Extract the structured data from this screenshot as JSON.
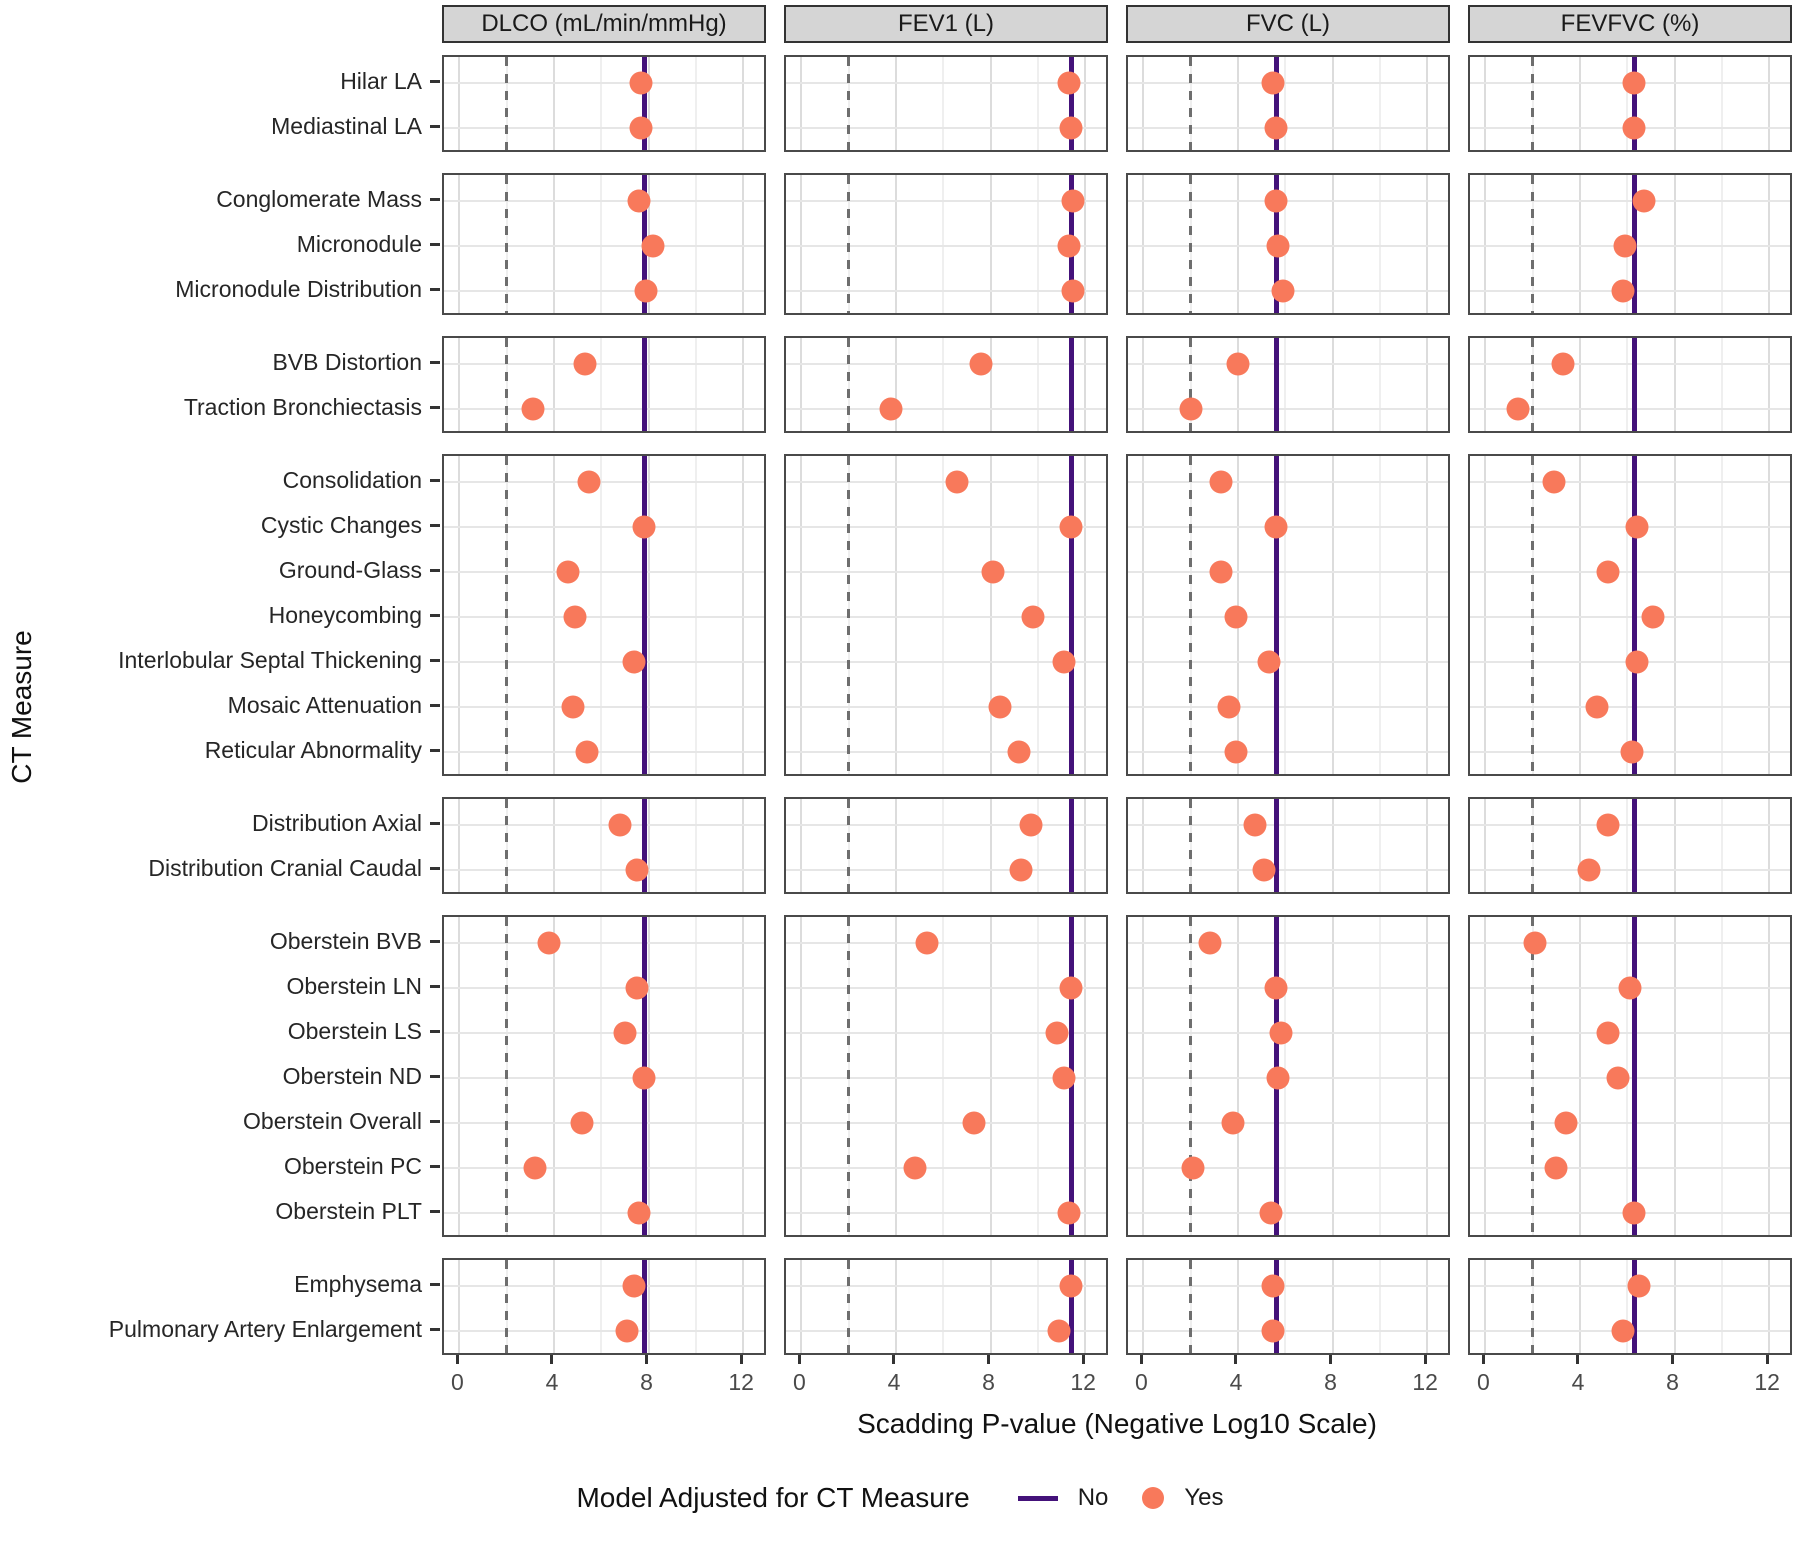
{
  "chart_data": {
    "type": "scatter",
    "subtype": "faceted-dot-plot",
    "facet_columns": [
      "DLCO (mL/min/mmHg)",
      "FEV1 (L)",
      "FVC (L)",
      "FEVFVC (%)"
    ],
    "xlabel": "Scadding P-value (Negative Log10 Scale)",
    "ylabel": "CT Measure",
    "x_ticks": [
      0,
      4,
      8,
      12
    ],
    "xlim": [
      -0.65,
      13.05
    ],
    "grid": "on",
    "dashed_reference_x": 2,
    "no_line_x": [
      7.8,
      11.4,
      5.6,
      6.3
    ],
    "legend": {
      "title": "Model Adjusted for CT Measure",
      "position": "bottom",
      "entries": [
        {
          "label": "No",
          "symbol": "line",
          "color": "#44127a"
        },
        {
          "label": "Yes",
          "symbol": "point",
          "color": "#f8795b"
        }
      ]
    },
    "colors": {
      "point": "#f8795b",
      "no_line": "#44127a",
      "dashed_line": "#6e6e6e",
      "strip_background": "#d5d5d5"
    },
    "row_groups": [
      {
        "rows": [
          {
            "label": "Hilar LA",
            "adjusted": [
              7.7,
              11.3,
              5.5,
              6.3
            ]
          },
          {
            "label": "Mediastinal LA",
            "adjusted": [
              7.7,
              11.4,
              5.6,
              6.3
            ]
          }
        ]
      },
      {
        "rows": [
          {
            "label": "Conglomerate Mass",
            "adjusted": [
              7.6,
              11.5,
              5.6,
              6.7
            ]
          },
          {
            "label": "Micronodule",
            "adjusted": [
              8.2,
              11.3,
              5.7,
              5.9
            ]
          },
          {
            "label": "Micronodule Distribution",
            "adjusted": [
              7.9,
              11.5,
              5.9,
              5.8
            ]
          }
        ]
      },
      {
        "rows": [
          {
            "label": "BVB Distortion",
            "adjusted": [
              5.3,
              7.6,
              4.0,
              3.3
            ]
          },
          {
            "label": "Traction Bronchiectasis",
            "adjusted": [
              3.1,
              3.8,
              2.0,
              1.4
            ]
          }
        ]
      },
      {
        "rows": [
          {
            "label": "Consolidation",
            "adjusted": [
              5.5,
              6.6,
              3.3,
              2.9
            ]
          },
          {
            "label": "Cystic Changes",
            "adjusted": [
              7.8,
              11.4,
              5.6,
              6.4
            ]
          },
          {
            "label": "Ground-Glass",
            "adjusted": [
              4.6,
              8.1,
              3.3,
              5.2
            ]
          },
          {
            "label": "Honeycombing",
            "adjusted": [
              4.9,
              9.8,
              3.9,
              7.1
            ]
          },
          {
            "label": "Interlobular Septal Thickening",
            "adjusted": [
              7.4,
              11.1,
              5.3,
              6.4
            ]
          },
          {
            "label": "Mosaic Attenuation",
            "adjusted": [
              4.8,
              8.4,
              3.6,
              4.7
            ]
          },
          {
            "label": "Reticular Abnormality",
            "adjusted": [
              5.4,
              9.2,
              3.9,
              6.2
            ]
          }
        ]
      },
      {
        "rows": [
          {
            "label": "Distribution Axial",
            "adjusted": [
              6.8,
              9.7,
              4.7,
              5.2
            ]
          },
          {
            "label": "Distribution Cranial Caudal",
            "adjusted": [
              7.5,
              9.3,
              5.1,
              4.4
            ]
          }
        ]
      },
      {
        "rows": [
          {
            "label": "Oberstein BVB",
            "adjusted": [
              3.8,
              5.3,
              2.8,
              2.1
            ]
          },
          {
            "label": "Oberstein LN",
            "adjusted": [
              7.5,
              11.4,
              5.6,
              6.1
            ]
          },
          {
            "label": "Oberstein LS",
            "adjusted": [
              7.0,
              10.8,
              5.8,
              5.2
            ]
          },
          {
            "label": "Oberstein ND",
            "adjusted": [
              7.8,
              11.1,
              5.7,
              5.6
            ]
          },
          {
            "label": "Oberstein Overall",
            "adjusted": [
              5.2,
              7.3,
              3.8,
              3.4
            ]
          },
          {
            "label": "Oberstein PC",
            "adjusted": [
              3.2,
              4.8,
              2.1,
              3.0
            ]
          },
          {
            "label": "Oberstein PLT",
            "adjusted": [
              7.6,
              11.3,
              5.4,
              6.3
            ]
          }
        ]
      },
      {
        "rows": [
          {
            "label": "Emphysema",
            "adjusted": [
              7.4,
              11.4,
              5.5,
              6.5
            ]
          },
          {
            "label": "Pulmonary Artery Enlargement",
            "adjusted": [
              7.1,
              10.9,
              5.5,
              5.8
            ]
          }
        ]
      }
    ]
  }
}
